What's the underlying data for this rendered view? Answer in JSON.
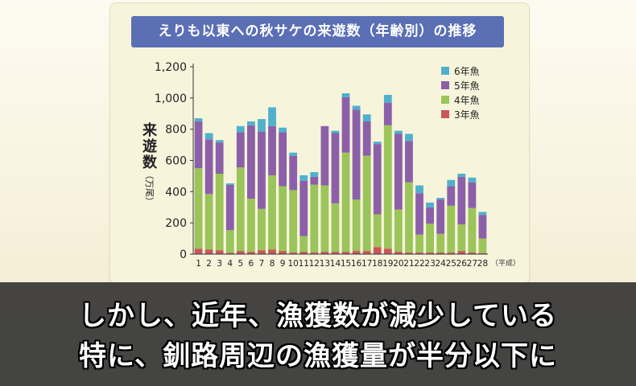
{
  "caption": {
    "line1": "しかし、近年、漁獲数が減少している",
    "line2": "特に、釧路周辺の漁獲量が半分以下に"
  },
  "colors": {
    "title_bg": "#5b6fb5",
    "age3": "#c9575a",
    "age4": "#9bc45a",
    "age5": "#8c60a8",
    "age6": "#4fb1cc"
  },
  "chart_data": {
    "type": "bar",
    "stacked": true,
    "title": "えりも以東への秋サケの来遊数（年齢別）の推移",
    "ylabel": "来遊数",
    "yunit": "（万尾）",
    "xunit": "（平成）",
    "ylim": [
      0,
      1200
    ],
    "yticks": [
      "0",
      "200",
      "400",
      "600",
      "800",
      "1,000",
      "1,200"
    ],
    "legend_position": "top-right",
    "categories": [
      "1",
      "2",
      "3",
      "4",
      "5",
      "6",
      "7",
      "8",
      "9",
      "10",
      "11",
      "12",
      "13",
      "14",
      "15",
      "16",
      "17",
      "18",
      "19",
      "20",
      "21",
      "22",
      "23",
      "24",
      "25",
      "26",
      "27",
      "28"
    ],
    "series": [
      {
        "name": "3年魚",
        "color": "#c9575a",
        "values": [
          35,
          30,
          25,
          8,
          20,
          15,
          25,
          30,
          20,
          10,
          15,
          10,
          15,
          15,
          15,
          20,
          20,
          45,
          35,
          15,
          10,
          10,
          10,
          10,
          10,
          20,
          10,
          5
        ]
      },
      {
        "name": "4年魚",
        "color": "#9bc45a",
        "values": [
          515,
          355,
          490,
          145,
          535,
          340,
          265,
          475,
          415,
          400,
          100,
          435,
          425,
          310,
          635,
          330,
          610,
          210,
          790,
          270,
          450,
          115,
          185,
          120,
          300,
          170,
          285,
          95
        ]
      },
      {
        "name": "5年魚",
        "color": "#8c60a8",
        "values": [
          300,
          350,
          200,
          290,
          225,
          470,
          495,
          315,
          345,
          220,
          355,
          50,
          380,
          450,
          355,
          575,
          220,
          450,
          145,
          485,
          265,
          265,
          105,
          220,
          125,
          305,
          165,
          150
        ]
      },
      {
        "name": "6年魚",
        "color": "#4fb1cc",
        "values": [
          20,
          40,
          15,
          10,
          40,
          25,
          80,
          120,
          30,
          20,
          35,
          30,
          0,
          15,
          25,
          25,
          45,
          15,
          50,
          20,
          45,
          50,
          30,
          10,
          40,
          20,
          30,
          20
        ]
      }
    ],
    "legend_order": [
      "6年魚",
      "5年魚",
      "4年魚",
      "3年魚"
    ]
  }
}
